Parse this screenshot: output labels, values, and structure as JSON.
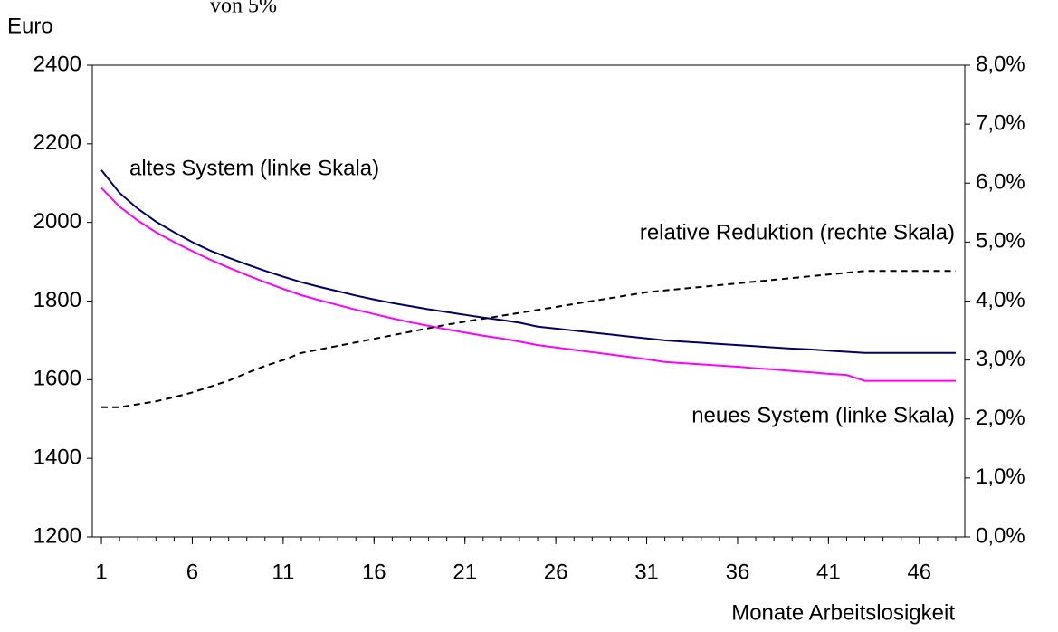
{
  "chart_data": {
    "type": "line",
    "title": "von 5%",
    "y_label": "Euro",
    "x_label": "Monate Arbeitslosigkeit",
    "annotations": [
      "altes System (linke Skala)",
      "relative Reduktion (rechte Skala)",
      "neues System (linke Skala)"
    ],
    "x": [
      1,
      2,
      3,
      4,
      5,
      6,
      7,
      8,
      9,
      10,
      11,
      12,
      13,
      14,
      15,
      16,
      17,
      18,
      19,
      20,
      21,
      22,
      23,
      24,
      25,
      26,
      27,
      28,
      29,
      30,
      31,
      32,
      33,
      34,
      35,
      36,
      37,
      38,
      39,
      40,
      41,
      42,
      43,
      44,
      45,
      46,
      47,
      48
    ],
    "xlim": [
      0.5,
      48.5
    ],
    "xticks": [
      1,
      6,
      11,
      16,
      21,
      26,
      31,
      36,
      41,
      46
    ],
    "ylim": [
      1200,
      2400
    ],
    "yticks": [
      1200,
      1400,
      1600,
      1800,
      2000,
      2200,
      2400
    ],
    "y2lim": [
      0,
      8
    ],
    "y2ticks": [
      {
        "value": 0,
        "label": "0,0%"
      },
      {
        "value": 1,
        "label": "1,0%"
      },
      {
        "value": 2,
        "label": "2,0%"
      },
      {
        "value": 3,
        "label": "3,0%"
      },
      {
        "value": 4,
        "label": "4,0%"
      },
      {
        "value": 5,
        "label": "5,0%"
      },
      {
        "value": 6,
        "label": "6,0%"
      },
      {
        "value": 7,
        "label": "7,0%"
      },
      {
        "value": 8,
        "label": "8,0%"
      }
    ],
    "series": [
      {
        "name": "altes System (linke Skala)",
        "color": "#000066",
        "axis": "y",
        "values": [
          2133,
          2075,
          2035,
          2002,
          1975,
          1950,
          1928,
          1910,
          1893,
          1877,
          1862,
          1848,
          1836,
          1825,
          1814,
          1804,
          1795,
          1787,
          1779,
          1772,
          1765,
          1758,
          1752,
          1745,
          1735,
          1730,
          1725,
          1720,
          1715,
          1710,
          1705,
          1700,
          1697,
          1694,
          1691,
          1688,
          1685,
          1682,
          1679,
          1677,
          1674,
          1671,
          1668,
          1668,
          1668,
          1668,
          1668,
          1668
        ]
      },
      {
        "name": "neues System (linke Skala)",
        "color": "#ff00ff",
        "axis": "y",
        "values": [
          2088,
          2040,
          2005,
          1975,
          1950,
          1927,
          1905,
          1885,
          1866,
          1848,
          1831,
          1815,
          1802,
          1790,
          1778,
          1767,
          1756,
          1746,
          1737,
          1728,
          1720,
          1712,
          1705,
          1697,
          1688,
          1682,
          1676,
          1670,
          1664,
          1658,
          1652,
          1645,
          1642,
          1639,
          1636,
          1633,
          1629,
          1626,
          1622,
          1619,
          1615,
          1612,
          1597,
          1597,
          1597,
          1597,
          1597,
          1597
        ]
      },
      {
        "name": "relative Reduktion (rechte Skala)",
        "color": "#000000",
        "axis": "y2",
        "dashed": true,
        "values": [
          2.2,
          2.2,
          2.25,
          2.3,
          2.37,
          2.45,
          2.55,
          2.65,
          2.78,
          2.9,
          3.0,
          3.12,
          3.18,
          3.24,
          3.3,
          3.36,
          3.42,
          3.48,
          3.54,
          3.6,
          3.65,
          3.7,
          3.75,
          3.8,
          3.85,
          3.9,
          3.95,
          4.0,
          4.05,
          4.1,
          4.15,
          4.18,
          4.21,
          4.24,
          4.27,
          4.3,
          4.33,
          4.36,
          4.39,
          4.42,
          4.45,
          4.48,
          4.51,
          4.51,
          4.51,
          4.51,
          4.51,
          4.51
        ]
      }
    ]
  }
}
